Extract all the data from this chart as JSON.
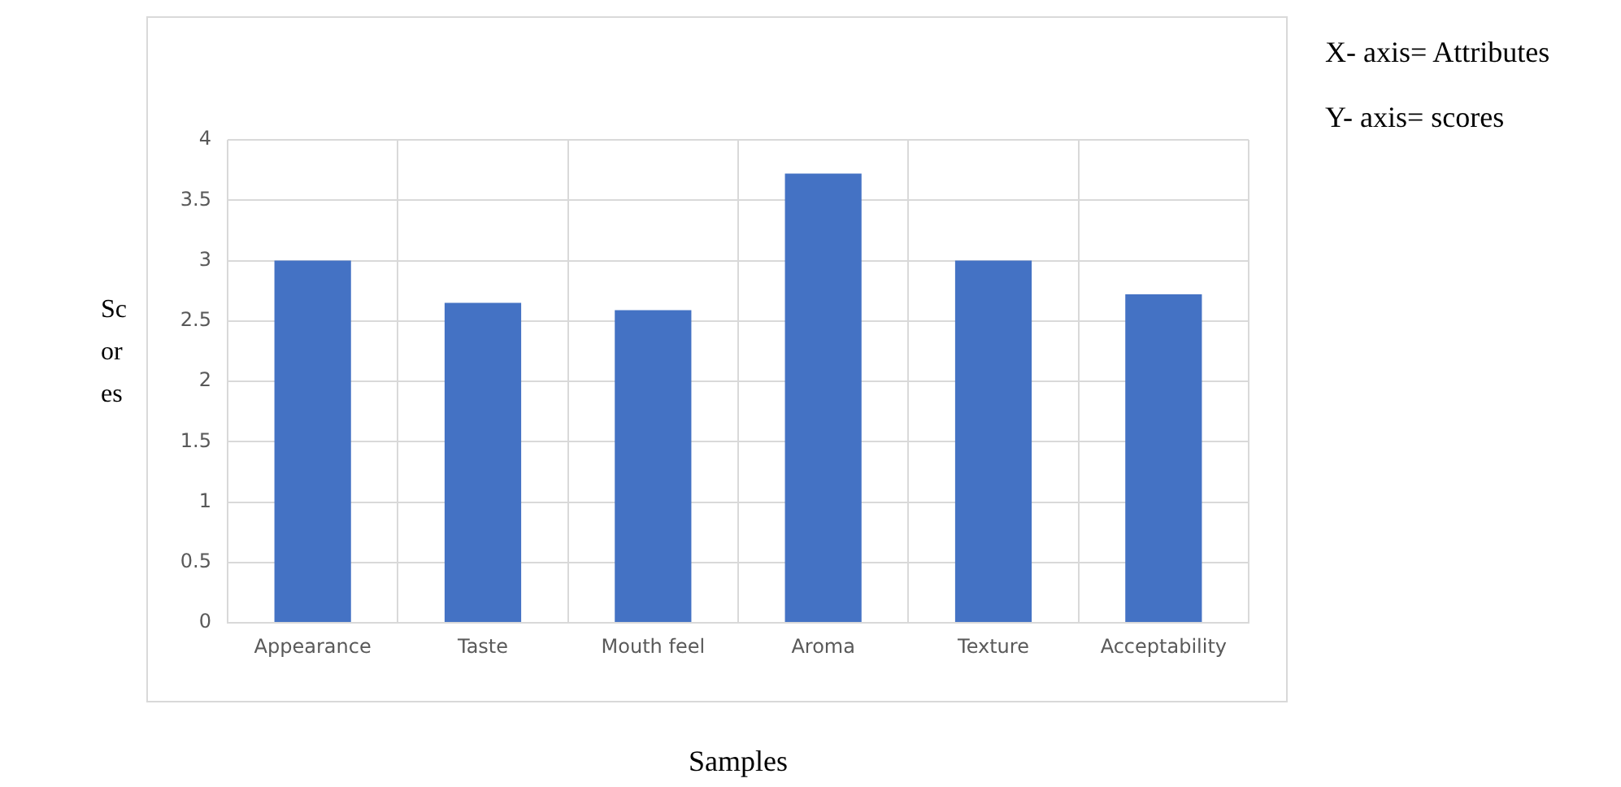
{
  "chart_data": {
    "type": "bar",
    "xlabel": "Samples",
    "ylabel": "Scores",
    "categories": [
      "Appearance",
      "Taste",
      "Mouth feel",
      "Aroma",
      "Texture",
      "Acceptability"
    ],
    "values": [
      3,
      2.65,
      2.59,
      3.72,
      3,
      2.72
    ],
    "color": "#4472c4",
    "ylim": [
      0,
      4
    ],
    "yticks": [
      0,
      0.5,
      1,
      1.5,
      2,
      2.5,
      3,
      3.5,
      4
    ],
    "grid": true,
    "annotations": [
      "X- axis= Attributes",
      "Y- axis= scores"
    ]
  }
}
